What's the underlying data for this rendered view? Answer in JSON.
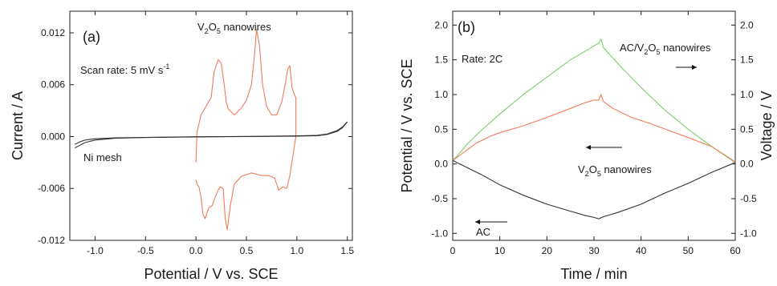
{
  "chart_data": [
    {
      "type": "line",
      "panel_label": "(a)",
      "xlabel": "Potential / V vs. SCE",
      "ylabel": "Current / A",
      "xlim": [
        -1.25,
        1.55
      ],
      "ylim": [
        -0.012,
        0.0145
      ],
      "xticks": [
        "-1.0",
        "-0.5",
        "0.0",
        "0.5",
        "1.0",
        "1.5"
      ],
      "xtick_values": [
        -1.0,
        -0.5,
        0.0,
        0.5,
        1.0,
        1.5
      ],
      "yticks": [
        "-0.012",
        "-0.006",
        "0.000",
        "0.006",
        "0.012"
      ],
      "ytick_values": [
        -0.012,
        -0.006,
        0.0,
        0.006,
        0.012
      ],
      "grid": false,
      "annotations": {
        "scan_rate": "Scan rate: 5 mV s",
        "scan_rate_sup": "-1",
        "series_label_pre": "V",
        "series_label_sub1": "2",
        "series_label_mid": "O",
        "series_label_sub2": "5",
        "series_label_post": " nanowires",
        "ni_label": "Ni mesh"
      },
      "colors": {
        "vo": "#f07c5a",
        "ni": "#333333"
      },
      "series": [
        {
          "name": "V2O5 nanowires",
          "x": [
            0.0,
            0.01,
            0.05,
            0.1,
            0.15,
            0.18,
            0.22,
            0.25,
            0.28,
            0.3,
            0.32,
            0.38,
            0.45,
            0.5,
            0.55,
            0.58,
            0.6,
            0.63,
            0.66,
            0.7,
            0.75,
            0.8,
            0.85,
            0.88,
            0.91,
            0.93,
            0.95,
            0.97,
            0.99,
            0.99,
            0.97,
            0.95,
            0.93,
            0.9,
            0.86,
            0.82,
            0.78,
            0.72,
            0.65,
            0.55,
            0.45,
            0.38,
            0.34,
            0.31,
            0.29,
            0.27,
            0.24,
            0.22,
            0.19,
            0.16,
            0.13,
            0.11,
            0.09,
            0.07,
            0.05,
            0.03,
            0.01,
            0.0
          ],
          "y": [
            -0.003,
            0.0005,
            0.0025,
            0.0035,
            0.0045,
            0.0075,
            0.0089,
            0.0085,
            0.006,
            0.004,
            0.0032,
            0.0025,
            0.0033,
            0.0042,
            0.006,
            0.0095,
            0.0124,
            0.0105,
            0.006,
            0.0035,
            0.0025,
            0.0025,
            0.004,
            0.0058,
            0.0078,
            0.0082,
            0.0058,
            0.005,
            0.0045,
            0.0,
            -0.0015,
            -0.003,
            -0.0045,
            -0.006,
            -0.0058,
            -0.0062,
            -0.0048,
            -0.0045,
            -0.0045,
            -0.0042,
            -0.0046,
            -0.0055,
            -0.008,
            -0.0108,
            -0.0095,
            -0.006,
            -0.0058,
            -0.0062,
            -0.007,
            -0.008,
            -0.0082,
            -0.0088,
            -0.0095,
            -0.009,
            -0.007,
            -0.0058,
            -0.0055,
            -0.005
          ]
        },
        {
          "name": "Ni mesh (upper)",
          "x": [
            -1.2,
            -1.15,
            -1.1,
            -1.0,
            -0.8,
            -0.5,
            0.0,
            0.5,
            1.0,
            1.2,
            1.3,
            1.4,
            1.45,
            1.5
          ],
          "y": [
            -0.0009,
            -0.0006,
            -0.0004,
            -0.00025,
            -0.00015,
            -0.0001,
            -4e-05,
            0.0,
            5e-05,
            0.0001,
            0.00025,
            0.0006,
            0.001,
            0.0017
          ]
        },
        {
          "name": "Ni mesh (lower)",
          "x": [
            1.5,
            1.45,
            1.4,
            1.3,
            1.2,
            1.0,
            0.5,
            0.0,
            -0.5,
            -0.8,
            -1.0,
            -1.1,
            -1.15,
            -1.2
          ],
          "y": [
            0.0017,
            0.0011,
            0.0007,
            0.0003,
            0.00015,
            8e-05,
            2e-05,
            -2e-05,
            -0.0001,
            -0.0002,
            -0.0004,
            -0.0007,
            -0.001,
            -0.0013
          ]
        }
      ]
    },
    {
      "type": "line",
      "panel_label": "(b)",
      "xlabel": "Time / min",
      "ylabel": "Potential / V vs. SCE",
      "y2label": "Voltage / V",
      "xlim": [
        0,
        60
      ],
      "ylim": [
        -1.1,
        2.2
      ],
      "xticks": [
        "0",
        "10",
        "20",
        "30",
        "40",
        "50",
        "60"
      ],
      "xtick_values": [
        0,
        10,
        20,
        30,
        40,
        50,
        60
      ],
      "yticks": [
        "-1.0",
        "-0.5",
        "0.0",
        "0.5",
        "1.0",
        "1.5",
        "2.0"
      ],
      "ytick_values": [
        -1.0,
        -0.5,
        0.0,
        0.5,
        1.0,
        1.5,
        2.0
      ],
      "grid": false,
      "annotations": {
        "rate": "Rate: 2C",
        "full_pre": "AC/V",
        "full_sub1": "2",
        "full_mid": "O",
        "full_sub2": "5",
        "full_post": " nanowires",
        "vo_pre": "V",
        "vo_sub1": "2",
        "vo_mid": "O",
        "vo_sub2": "5",
        "vo_post": " nanowires",
        "ac": "AC"
      },
      "colors": {
        "full": "#7ccf6a",
        "vo": "#f07c5a",
        "ac": "#333333",
        "arrow": "#111111"
      },
      "series": [
        {
          "name": "AC/V2O5 nanowires",
          "x": [
            0,
            1,
            3,
            6,
            10,
            15,
            20,
            25,
            28,
            30,
            31,
            31.5,
            32,
            33,
            36,
            40,
            45,
            50,
            55,
            60
          ],
          "y": [
            0.05,
            0.12,
            0.28,
            0.48,
            0.72,
            1.0,
            1.25,
            1.5,
            1.62,
            1.7,
            1.74,
            1.8,
            1.68,
            1.6,
            1.38,
            1.1,
            0.78,
            0.5,
            0.25,
            0.02
          ]
        },
        {
          "name": "V2O5 nanowires",
          "x": [
            0,
            2,
            5,
            8,
            10,
            15,
            20,
            25,
            28,
            30,
            31,
            31.5,
            32,
            34,
            38,
            42,
            46,
            50,
            55,
            58,
            60
          ],
          "y": [
            0.05,
            0.15,
            0.3,
            0.4,
            0.45,
            0.55,
            0.67,
            0.8,
            0.88,
            0.92,
            0.92,
            1.0,
            0.9,
            0.8,
            0.67,
            0.58,
            0.48,
            0.38,
            0.25,
            0.12,
            0.03
          ]
        },
        {
          "name": "AC",
          "x": [
            0,
            3,
            6,
            10,
            15,
            20,
            25,
            28,
            30,
            31,
            32,
            35,
            40,
            45,
            50,
            55,
            60
          ],
          "y": [
            0.05,
            -0.05,
            -0.15,
            -0.3,
            -0.45,
            -0.58,
            -0.68,
            -0.74,
            -0.77,
            -0.79,
            -0.76,
            -0.7,
            -0.58,
            -0.42,
            -0.28,
            -0.12,
            0.02
          ]
        }
      ]
    }
  ]
}
